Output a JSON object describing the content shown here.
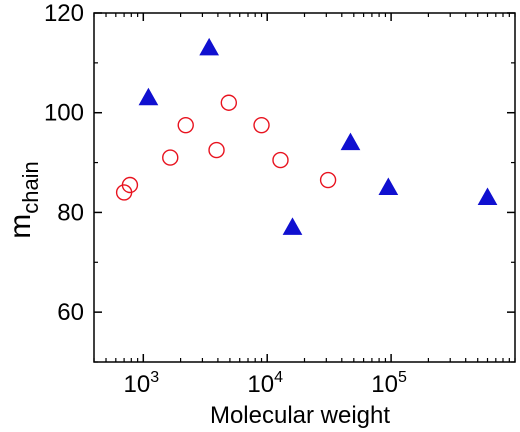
{
  "chart_data": {
    "type": "scatter",
    "xlabel": "Molecular weight",
    "ylabel": {
      "main": "m",
      "sub": "chain"
    },
    "xscale": "log",
    "xlim": [
      400,
      1000000
    ],
    "ylim": [
      50,
      120
    ],
    "grid": false,
    "legend": "none",
    "yticks": [
      60,
      80,
      100,
      120
    ],
    "xticks": [
      {
        "value": 1000,
        "base": "10",
        "exp": "3"
      },
      {
        "value": 10000,
        "base": "10",
        "exp": "4"
      },
      {
        "value": 100000,
        "base": "10",
        "exp": "5"
      }
    ],
    "series": [
      {
        "marker": "open-circle",
        "color": "#e8131f",
        "points": [
          {
            "x": 700,
            "y": 84
          },
          {
            "x": 780,
            "y": 85.5
          },
          {
            "x": 1650,
            "y": 91
          },
          {
            "x": 2200,
            "y": 97.5
          },
          {
            "x": 3900,
            "y": 92.5
          },
          {
            "x": 4900,
            "y": 102
          },
          {
            "x": 9000,
            "y": 97.5
          },
          {
            "x": 12800,
            "y": 90.5
          },
          {
            "x": 31000,
            "y": 86.5
          }
        ]
      },
      {
        "marker": "filled-triangle",
        "color": "#1010d0",
        "points": [
          {
            "x": 1100,
            "y": 103
          },
          {
            "x": 3400,
            "y": 113
          },
          {
            "x": 16000,
            "y": 77
          },
          {
            "x": 47000,
            "y": 94
          },
          {
            "x": 95000,
            "y": 85
          },
          {
            "x": 600000,
            "y": 83
          }
        ]
      }
    ]
  }
}
